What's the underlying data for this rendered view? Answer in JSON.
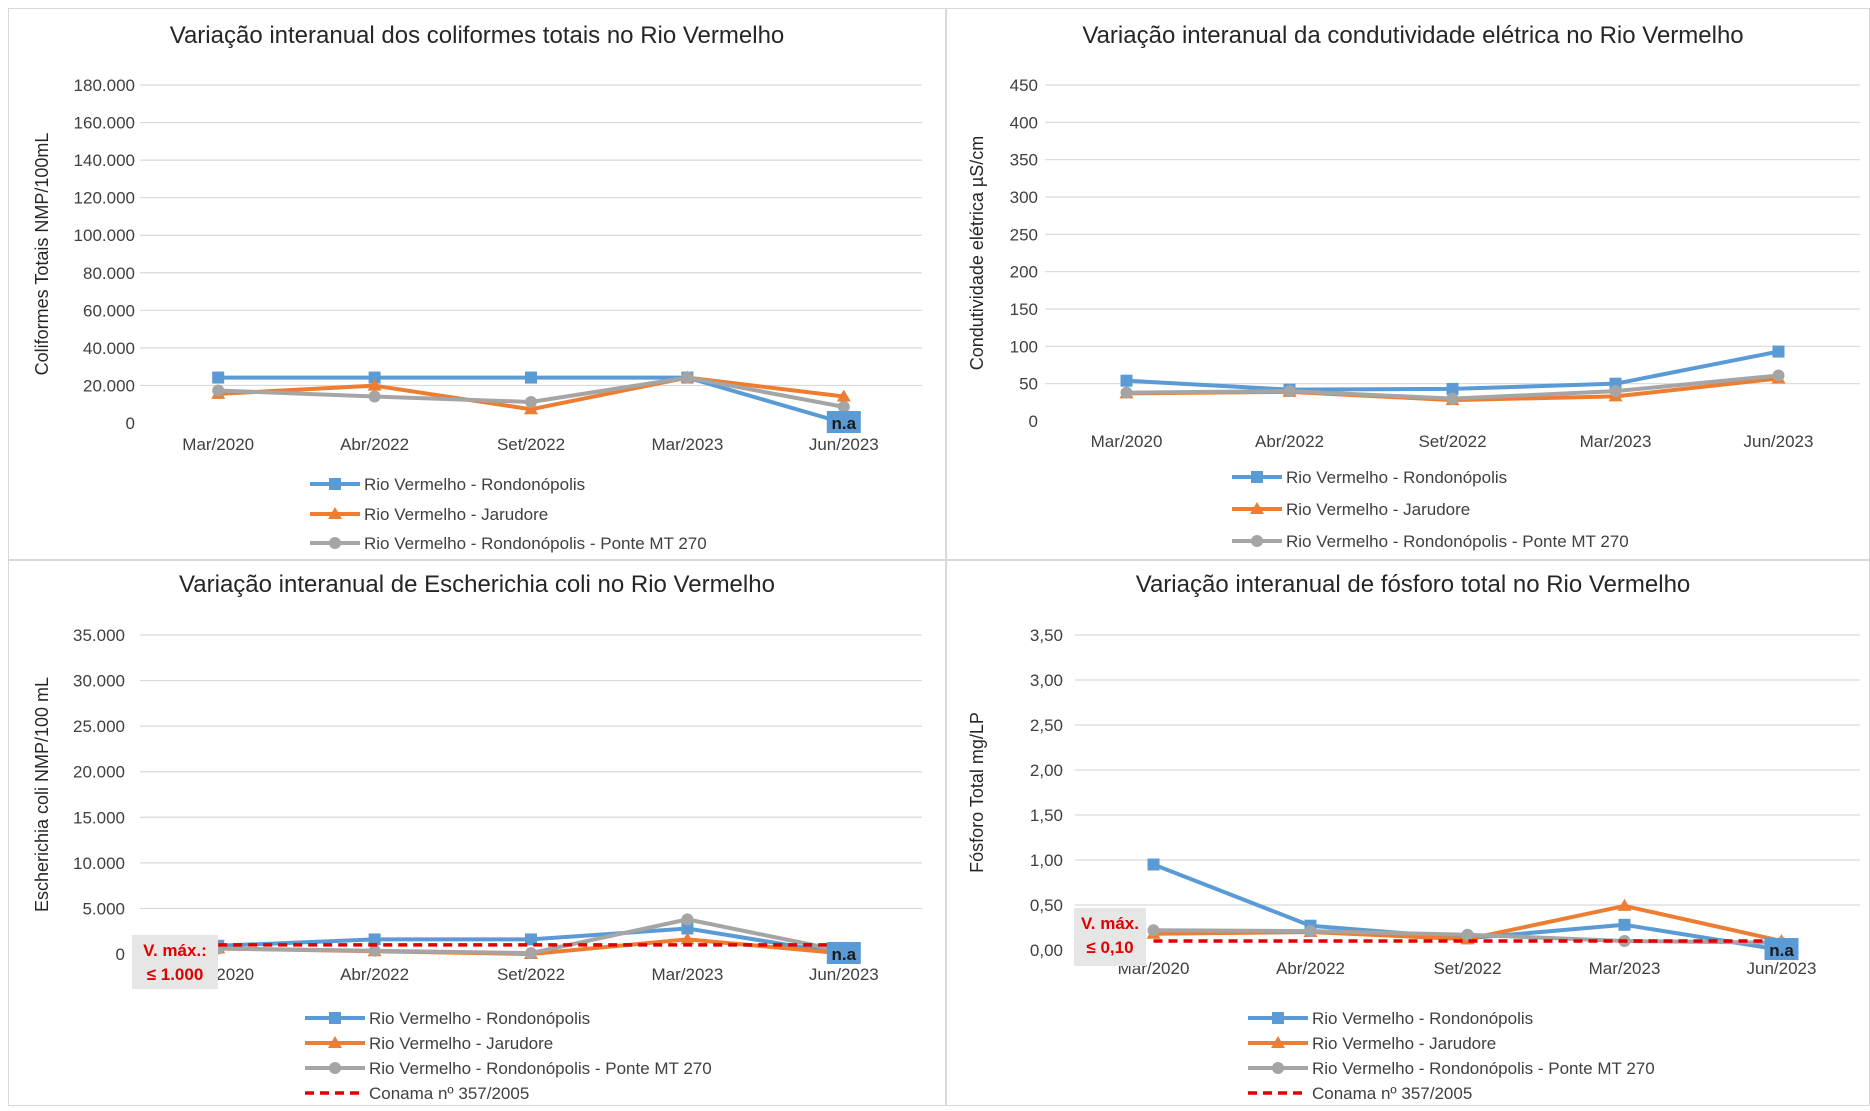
{
  "colors": {
    "rondonopolis": "#5B9BD5",
    "jarudore": "#ED7D31",
    "ponte": "#A5A5A5",
    "conama": "#E00000",
    "grid": "#D9D9D9",
    "text": "#404040",
    "na_box": "#5B9BD5",
    "vmax_box": "#E7E6E6"
  },
  "chart_data": [
    {
      "type": "line",
      "title": "Variação interanual dos coliformes totais no Rio Vermelho",
      "ylabel": "Coliformes Totais NMP/100mL",
      "xlabel": "",
      "categories": [
        "Mar/2020",
        "Abr/2022",
        "Set/2022",
        "Mar/2023",
        "Jun/2023"
      ],
      "ylim": [
        0,
        180000
      ],
      "ystep": 20000,
      "ytick_labels": [
        "0",
        "20.000",
        "40.000",
        "60.000",
        "80.000",
        "100.000",
        "120.000",
        "140.000",
        "160.000",
        "180.000"
      ],
      "grid": true,
      "legend": "bottom",
      "series": [
        {
          "name": "Rio Vermelho - Rondonópolis",
          "values": [
            24196,
            24196,
            24196,
            24196,
            0
          ],
          "marker": "square",
          "color": "#5B9BD5"
        },
        {
          "name": "Rio Vermelho - Jarudore",
          "values": [
            15500,
            19900,
            7300,
            24196,
            14100
          ],
          "marker": "triangle",
          "color": "#ED7D31"
        },
        {
          "name": "Rio Vermelho - Rondonópolis - Ponte MT 270",
          "values": [
            17300,
            14100,
            11200,
            24196,
            8600
          ],
          "marker": "circle",
          "color": "#A5A5A5"
        }
      ],
      "annotations": [
        {
          "text": "n.a",
          "category_index": 4
        }
      ]
    },
    {
      "type": "line",
      "title": "Variação interanual da condutividade elétrica no Rio Vermelho",
      "ylabel": "Condutividade elétrica µS/cm",
      "xlabel": "",
      "categories": [
        "Mar/2020",
        "Abr/2022",
        "Set/2022",
        "Mar/2023",
        "Jun/2023"
      ],
      "ylim": [
        0,
        450
      ],
      "ystep": 50,
      "ytick_labels": [
        "0",
        "50",
        "100",
        "150",
        "200",
        "250",
        "300",
        "350",
        "400",
        "450"
      ],
      "grid": true,
      "legend": "bottom",
      "series": [
        {
          "name": "Rio Vermelho - Rondonópolis",
          "values": [
            54,
            42,
            43,
            50,
            93
          ],
          "marker": "square",
          "color": "#5B9BD5"
        },
        {
          "name": "Rio Vermelho - Jarudore",
          "values": [
            37,
            39,
            28,
            33,
            57
          ],
          "marker": "triangle",
          "color": "#ED7D31"
        },
        {
          "name": "Rio Vermelho - Rondonópolis - Ponte MT 270",
          "values": [
            38,
            40,
            30,
            40,
            61
          ],
          "marker": "circle",
          "color": "#A5A5A5"
        }
      ]
    },
    {
      "type": "line",
      "title": "Variação interanual de Escherichia coli no Rio Vermelho",
      "ylabel": "Escherichia coli NMP/100 mL",
      "xlabel": "",
      "categories": [
        "Mar/2020",
        "Abr/2022",
        "Set/2022",
        "Mar/2023",
        "Jun/2023"
      ],
      "ylim": [
        0,
        35000
      ],
      "ystep": 5000,
      "ytick_labels": [
        "0",
        "5.000",
        "10.000",
        "15.000",
        "20.000",
        "25.000",
        "30.000",
        "35.000"
      ],
      "grid": true,
      "legend": "bottom",
      "series": [
        {
          "name": "Rio Vermelho - Rondonópolis",
          "values": [
            900,
            1600,
            1600,
            2800,
            0
          ],
          "marker": "square",
          "color": "#5B9BD5"
        },
        {
          "name": "Rio Vermelho - Jarudore",
          "values": [
            600,
            300,
            0,
            1600,
            50
          ],
          "marker": "triangle",
          "color": "#ED7D31"
        },
        {
          "name": "Rio Vermelho - Rondonópolis - Ponte MT 270",
          "values": [
            600,
            350,
            100,
            3800,
            300
          ],
          "marker": "circle",
          "color": "#A5A5A5"
        },
        {
          "name": "Conama nº 357/2005",
          "values": [
            1000,
            1000,
            1000,
            1000,
            1000
          ],
          "marker": "none",
          "color": "#E00000",
          "dashed": true
        }
      ],
      "annotations": [
        {
          "text": "n.a",
          "category_index": 4
        }
      ],
      "limit_label": [
        "V. máx.:",
        "≤ 1.000"
      ]
    },
    {
      "type": "line",
      "title": "Variação interanual de fósforo total no Rio Vermelho",
      "ylabel": "Fósforo Total mg/LP",
      "xlabel": "",
      "categories": [
        "Mar/2020",
        "Abr/2022",
        "Set/2022",
        "Mar/2023",
        "Jun/2023"
      ],
      "ylim": [
        0,
        3.5
      ],
      "ystep": 0.5,
      "ytick_labels": [
        "0,00",
        "0,50",
        "1,00",
        "1,50",
        "2,00",
        "2,50",
        "3,00",
        "3,50"
      ],
      "grid": true,
      "legend": "bottom",
      "series": [
        {
          "name": "Rio Vermelho - Rondonópolis",
          "values": [
            0.95,
            0.27,
            0.13,
            0.28,
            0.0
          ],
          "marker": "square",
          "color": "#5B9BD5"
        },
        {
          "name": "Rio Vermelho - Jarudore",
          "values": [
            0.18,
            0.2,
            0.12,
            0.49,
            0.1
          ],
          "marker": "triangle",
          "color": "#ED7D31"
        },
        {
          "name": "Rio Vermelho - Rondonópolis - Ponte MT 270",
          "values": [
            0.22,
            0.21,
            0.17,
            0.1,
            0.08
          ],
          "marker": "circle",
          "color": "#A5A5A5"
        },
        {
          "name": "Conama nº 357/2005",
          "values": [
            0.1,
            0.1,
            0.1,
            0.1,
            0.1
          ],
          "marker": "none",
          "color": "#E00000",
          "dashed": true
        }
      ],
      "annotations": [
        {
          "text": "n.a",
          "category_index": 4
        }
      ],
      "limit_label": [
        "V. máx.",
        "≤ 0,10"
      ]
    }
  ]
}
